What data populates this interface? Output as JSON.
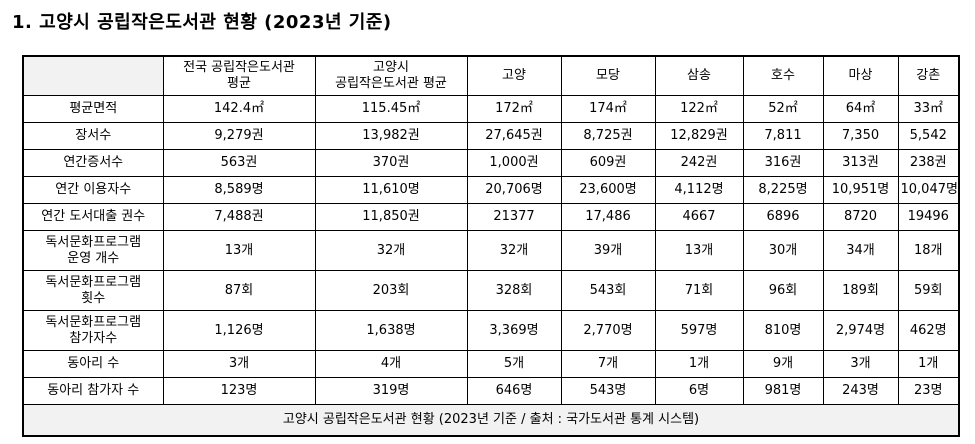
{
  "title": "1. 고양시 공립작은도서관 현황 (2023년 기준)",
  "table": {
    "columns": [
      [
        "전국 공립작은도서관",
        "평균"
      ],
      [
        "고양시",
        "공립작은도서관 평균"
      ],
      "고양",
      "모당",
      "삼송",
      "호수",
      "마상",
      "강촌"
    ],
    "rows": [
      {
        "label": "평균면적",
        "cells": [
          "142.4㎡",
          "115.45㎡",
          "172㎡",
          "174㎡",
          "122㎡",
          "52㎡",
          "64㎡",
          "33㎡"
        ]
      },
      {
        "label": "장서수",
        "cells": [
          "9,279권",
          "13,982권",
          "27,645권",
          "8,725권",
          "12,829권",
          "7,811",
          "7,350",
          "5,542"
        ]
      },
      {
        "label": "연간증서수",
        "cells": [
          "563권",
          "370권",
          "1,000권",
          "609권",
          "242권",
          "316권",
          "313권",
          "238권"
        ]
      },
      {
        "label": "연간 이용자수",
        "cells": [
          "8,589명",
          "11,610명",
          "20,706명",
          "23,600명",
          "4,112명",
          "8,225명",
          "10,951명",
          "10,047명"
        ]
      },
      {
        "label": "연간 도서대출 권수",
        "cells": [
          "7,488권",
          "11,850권",
          "21377",
          "17,486",
          "4667",
          "6896",
          "8720",
          "19496"
        ]
      },
      {
        "label": [
          "독서문화프로그램",
          "운영 개수"
        ],
        "cells": [
          "13개",
          "32개",
          "32개",
          "39개",
          "13개",
          "30개",
          "34개",
          "18개"
        ]
      },
      {
        "label": [
          "독서문화프로그램",
          "횟수"
        ],
        "cells": [
          "87회",
          "203회",
          "328회",
          "543회",
          "71회",
          "96회",
          "189회",
          "59회"
        ]
      },
      {
        "label": [
          "독서문화프로그램",
          "참가자수"
        ],
        "cells": [
          "1,126명",
          "1,638명",
          "3,369명",
          "2,770명",
          "597명",
          "810명",
          "2,974명",
          "462명"
        ]
      },
      {
        "label": "동아리 수",
        "cells": [
          "3개",
          "4개",
          "5개",
          "7개",
          "1개",
          "9개",
          "3개",
          "1개"
        ]
      },
      {
        "label": "동아리 참가자 수",
        "cells": [
          "123명",
          "319명",
          "646명",
          "543명",
          "6명",
          "981명",
          "243명",
          "23명"
        ]
      }
    ],
    "footer": "고양시 공립작은도서관 현황 (2023년 기준 / 출처 : 국가도서관 통계 시스템)"
  }
}
